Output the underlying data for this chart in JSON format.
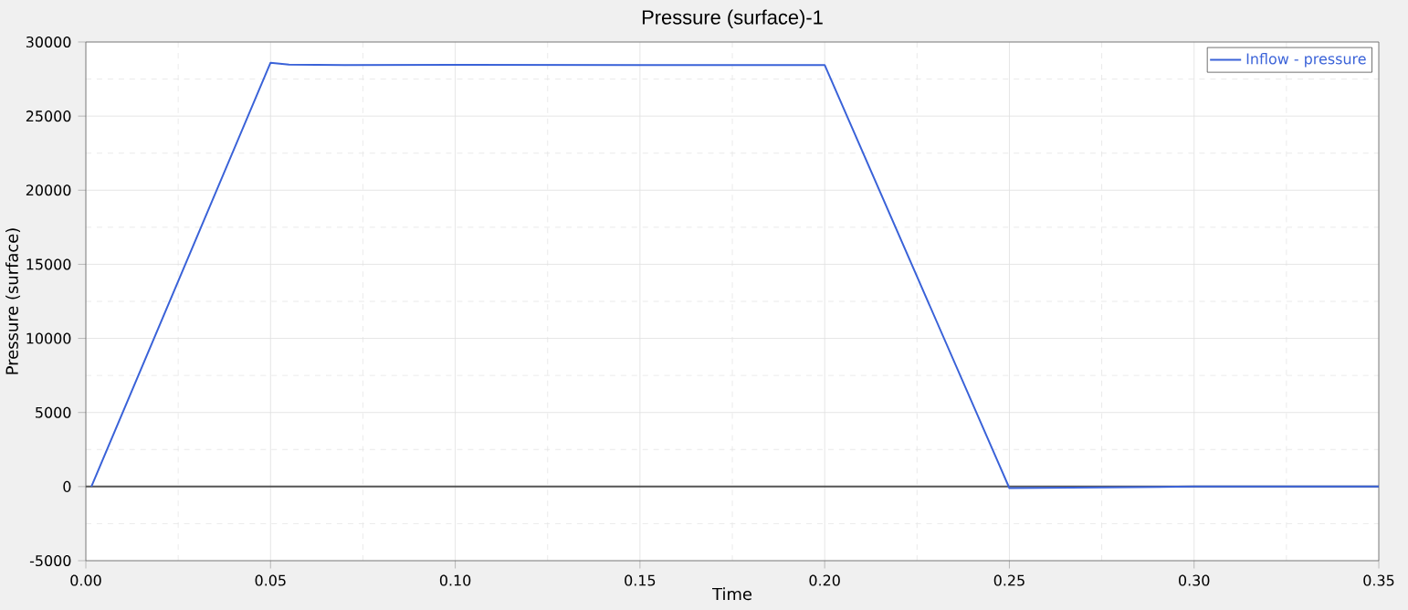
{
  "chart_data": {
    "type": "line",
    "title": "Pressure (surface)-1",
    "xlabel": "Time",
    "ylabel": "Pressure (surface)",
    "x": [
      0.0015,
      0.05,
      0.055,
      0.07,
      0.1,
      0.15,
      0.2,
      0.25,
      0.3,
      0.35
    ],
    "series": [
      {
        "name": "Inflow - pressure",
        "color": "#3a62d8",
        "values": [
          0,
          28600,
          28480,
          28450,
          28460,
          28450,
          28450,
          -100,
          0,
          0
        ]
      }
    ],
    "xlim": [
      0,
      0.35
    ],
    "xticks": [
      {
        "value": 0,
        "label": "0.00"
      },
      {
        "value": 0.05,
        "label": "0.05"
      },
      {
        "value": 0.1,
        "label": "0.10"
      },
      {
        "value": 0.15,
        "label": "0.15"
      },
      {
        "value": 0.2,
        "label": "0.20"
      },
      {
        "value": 0.25,
        "label": "0.25"
      },
      {
        "value": 0.3,
        "label": "0.30"
      },
      {
        "value": 0.35,
        "label": "0.35"
      }
    ],
    "ylim": [
      -5000,
      30000
    ],
    "yticks": [
      -5000,
      0,
      5000,
      10000,
      15000,
      20000,
      25000,
      30000
    ],
    "ref_lines": [
      {
        "axis": "y",
        "value": 0,
        "color": "#555555"
      }
    ],
    "grid": true,
    "legend": "top right",
    "marker": "none",
    "line_style": "solid"
  }
}
